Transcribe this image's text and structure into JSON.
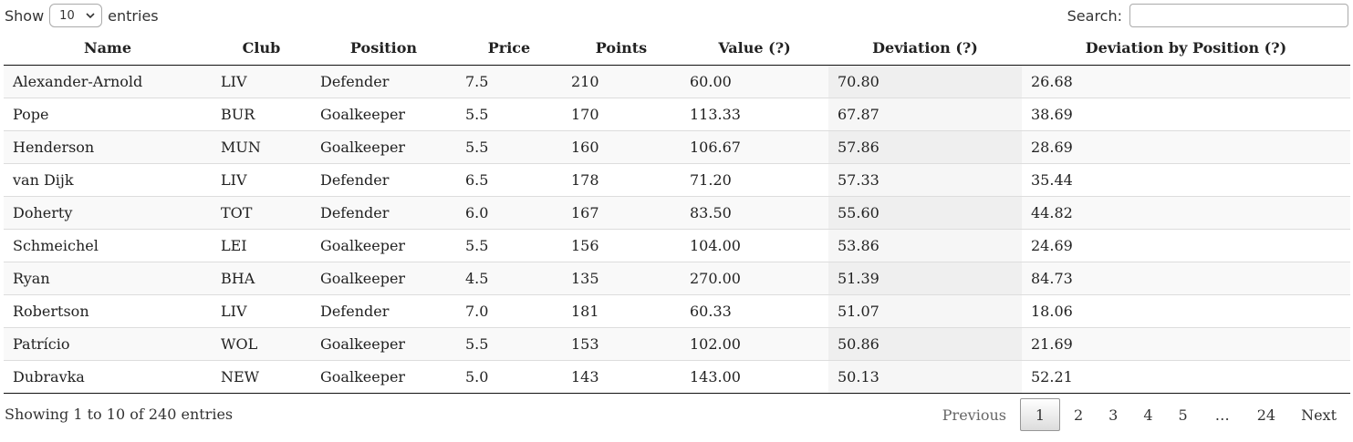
{
  "length": {
    "show_label": "Show",
    "selected": "10",
    "entries_label": "entries"
  },
  "search": {
    "label": "Search:",
    "value": ""
  },
  "table": {
    "columns": [
      "Name",
      "Club",
      "Position",
      "Price",
      "Points",
      "Value (?)",
      "Deviation (?)",
      "Deviation by Position (?)"
    ],
    "rows": [
      [
        "Alexander-Arnold",
        "LIV",
        "Defender",
        "7.5",
        "210",
        "60.00",
        "70.80",
        "26.68"
      ],
      [
        "Pope",
        "BUR",
        "Goalkeeper",
        "5.5",
        "170",
        "113.33",
        "67.87",
        "38.69"
      ],
      [
        "Henderson",
        "MUN",
        "Goalkeeper",
        "5.5",
        "160",
        "106.67",
        "57.86",
        "28.69"
      ],
      [
        "van Dijk",
        "LIV",
        "Defender",
        "6.5",
        "178",
        "71.20",
        "57.33",
        "35.44"
      ],
      [
        "Doherty",
        "TOT",
        "Defender",
        "6.0",
        "167",
        "83.50",
        "55.60",
        "44.82"
      ],
      [
        "Schmeichel",
        "LEI",
        "Goalkeeper",
        "5.5",
        "156",
        "104.00",
        "53.86",
        "24.69"
      ],
      [
        "Ryan",
        "BHA",
        "Goalkeeper",
        "4.5",
        "135",
        "270.00",
        "51.39",
        "84.73"
      ],
      [
        "Robertson",
        "LIV",
        "Defender",
        "7.0",
        "181",
        "60.33",
        "51.07",
        "18.06"
      ],
      [
        "Patrício",
        "WOL",
        "Goalkeeper",
        "5.5",
        "153",
        "102.00",
        "50.86",
        "21.69"
      ],
      [
        "Dubravka",
        "NEW",
        "Goalkeeper",
        "5.0",
        "143",
        "143.00",
        "50.13",
        "52.21"
      ]
    ]
  },
  "info": "Showing 1 to 10 of 240 entries",
  "pagination": {
    "previous": "Previous",
    "pages": [
      "1",
      "2",
      "3",
      "4",
      "5",
      "…",
      "24"
    ],
    "current": "1",
    "next": "Next"
  },
  "colors": {
    "sorted_column_bg": "#efefef",
    "striped_row_bg": "#f9f9f9"
  }
}
